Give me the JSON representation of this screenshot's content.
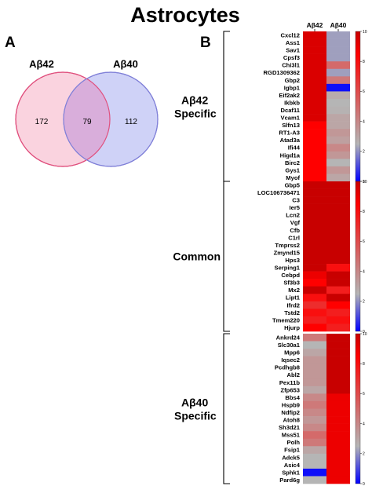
{
  "title": "Astrocytes",
  "panel_a": {
    "label": "A",
    "set1_label": "Aβ42",
    "set2_label": "Aβ40",
    "only_set1": "172",
    "overlap": "79",
    "only_set2": "112",
    "colors": {
      "set1_fill": "#fad3df",
      "set1_stroke": "#e0507e",
      "set2_fill": "#cfd2f7",
      "set2_stroke": "#8080d8",
      "overlap_fill": "#d9aedb"
    }
  },
  "panel_b": {
    "label": "B",
    "column_labels": [
      "Aβ42",
      "Aβ40"
    ],
    "colorbar_ticks": [
      "10",
      "8",
      "6",
      "4",
      "2",
      "0"
    ],
    "colors": {
      "low": "#0000ff",
      "mid": "#b5b5b5",
      "high": "#ff0000",
      "max": "#c80000"
    }
  },
  "chart_data": {
    "type": "heatmap",
    "value_range": [
      0,
      10
    ],
    "columns": [
      "Aβ42",
      "Aβ40"
    ],
    "groups": [
      {
        "name": "Aβ42 Specific",
        "rows": [
          {
            "gene": "Cxcl12",
            "values": [
              9.5,
              2.2
            ]
          },
          {
            "gene": "Ass1",
            "values": [
              9.5,
              2.2
            ]
          },
          {
            "gene": "Sav1",
            "values": [
              9.5,
              2.2
            ]
          },
          {
            "gene": "Cpsf3",
            "values": [
              9.5,
              2.2
            ]
          },
          {
            "gene": "Chi3l1",
            "values": [
              9.5,
              5.0
            ]
          },
          {
            "gene": "RGD1309362",
            "values": [
              9.5,
              2.2
            ]
          },
          {
            "gene": "Gbp2",
            "values": [
              9.5,
              4.5
            ]
          },
          {
            "gene": "Igbp1",
            "values": [
              9.5,
              0.2
            ]
          },
          {
            "gene": "Eif2ak2",
            "values": [
              9.5,
              2.8
            ]
          },
          {
            "gene": "Ikbkb",
            "values": [
              9.5,
              2.5
            ]
          },
          {
            "gene": "Dcaf11",
            "values": [
              9.5,
              2.6
            ]
          },
          {
            "gene": "Vcam1",
            "values": [
              9.5,
              3.0
            ]
          },
          {
            "gene": "Slfn13",
            "values": [
              8.5,
              3.0
            ]
          },
          {
            "gene": "RT1-A3",
            "values": [
              8.5,
              3.5
            ]
          },
          {
            "gene": "Atad3a",
            "values": [
              8.5,
              3.2
            ]
          },
          {
            "gene": "Ifi44",
            "values": [
              8.5,
              4.0
            ]
          },
          {
            "gene": "Higd1a",
            "values": [
              8.5,
              3.5
            ]
          },
          {
            "gene": "Birc2",
            "values": [
              8.5,
              2.5
            ]
          },
          {
            "gene": "Gys1",
            "values": [
              8.5,
              3.5
            ]
          },
          {
            "gene": "Myof",
            "values": [
              8.5,
              3.0
            ]
          }
        ]
      },
      {
        "name": "Common",
        "rows": [
          {
            "gene": "Gbp5",
            "values": [
              10,
              10
            ]
          },
          {
            "gene": "LOC106736471",
            "values": [
              10,
              10
            ]
          },
          {
            "gene": "C3",
            "values": [
              10,
              10
            ]
          },
          {
            "gene": "Ier5",
            "values": [
              10,
              10
            ]
          },
          {
            "gene": "Lcn2",
            "values": [
              10,
              10
            ]
          },
          {
            "gene": "Vgf",
            "values": [
              10,
              10
            ]
          },
          {
            "gene": "Cfb",
            "values": [
              10,
              10
            ]
          },
          {
            "gene": "C1rl",
            "values": [
              10,
              10
            ]
          },
          {
            "gene": "Tmprss2",
            "values": [
              10,
              10
            ]
          },
          {
            "gene": "Zmynd15",
            "values": [
              10,
              10
            ]
          },
          {
            "gene": "Hps3",
            "values": [
              10,
              10
            ]
          },
          {
            "gene": "Serping1",
            "values": [
              10,
              8.0
            ]
          },
          {
            "gene": "Cebpd",
            "values": [
              9.0,
              10
            ]
          },
          {
            "gene": "Sf3b3",
            "values": [
              8.5,
              10
            ]
          },
          {
            "gene": "Mx2",
            "values": [
              10,
              7.5
            ]
          },
          {
            "gene": "Lipt1",
            "values": [
              8.0,
              10
            ]
          },
          {
            "gene": "Ifrd2",
            "values": [
              7.0,
              8.5
            ]
          },
          {
            "gene": "Tstd2",
            "values": [
              8.0,
              7.5
            ]
          },
          {
            "gene": "Tmem220",
            "values": [
              7.5,
              8.0
            ]
          },
          {
            "gene": "Hjurp",
            "values": [
              8.5,
              7.5
            ]
          }
        ]
      },
      {
        "name": "Aβ40 Specific",
        "rows": [
          {
            "gene": "Ankrd24",
            "values": [
              4.5,
              10
            ]
          },
          {
            "gene": "Slc30a1",
            "values": [
              2.5,
              10
            ]
          },
          {
            "gene": "Mpp6",
            "values": [
              3.0,
              10
            ]
          },
          {
            "gene": "Iqsec2",
            "values": [
              3.5,
              10
            ]
          },
          {
            "gene": "Pcdhgb8",
            "values": [
              3.5,
              10
            ]
          },
          {
            "gene": "Abl2",
            "values": [
              3.5,
              10
            ]
          },
          {
            "gene": "Pex11b",
            "values": [
              3.5,
              10
            ]
          },
          {
            "gene": "Zfp653",
            "values": [
              3.0,
              10
            ]
          },
          {
            "gene": "Bbs4",
            "values": [
              4.0,
              9.0
            ]
          },
          {
            "gene": "Hspb9",
            "values": [
              4.5,
              9.0
            ]
          },
          {
            "gene": "Ndfip2",
            "values": [
              4.0,
              9.0
            ]
          },
          {
            "gene": "Atoh8",
            "values": [
              3.5,
              9.0
            ]
          },
          {
            "gene": "Sh3d21",
            "values": [
              4.0,
              9.0
            ]
          },
          {
            "gene": "Mss51",
            "values": [
              5.0,
              9.0
            ]
          },
          {
            "gene": "Polh",
            "values": [
              4.5,
              9.0
            ]
          },
          {
            "gene": "Fsip1",
            "values": [
              3.0,
              9.0
            ]
          },
          {
            "gene": "Adck5",
            "values": [
              2.5,
              9.0
            ]
          },
          {
            "gene": "Asic4",
            "values": [
              2.5,
              9.0
            ]
          },
          {
            "gene": "Sphk1",
            "values": [
              0.2,
              9.0
            ]
          },
          {
            "gene": "Pard6g",
            "values": [
              2.5,
              9.0
            ]
          }
        ]
      }
    ]
  }
}
